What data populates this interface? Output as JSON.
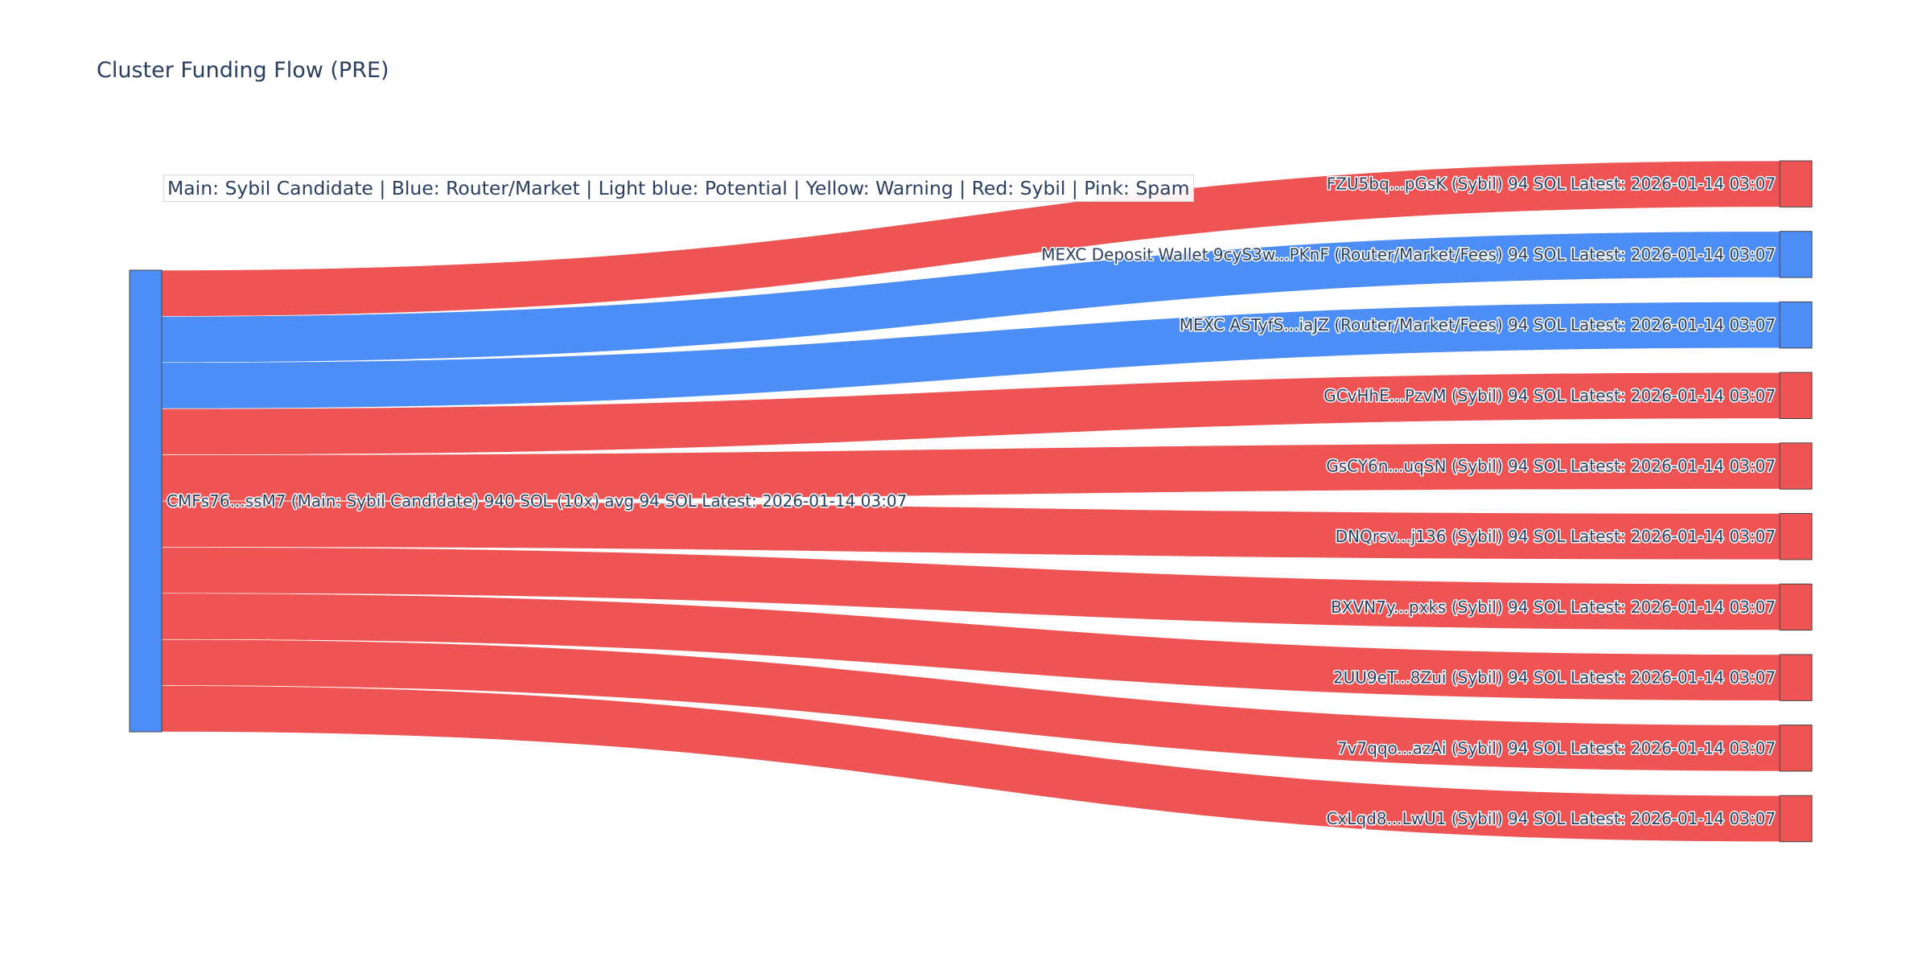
{
  "chart_data": {
    "type": "sankey",
    "title": "Cluster Funding Flow (PRE)",
    "annotation": "Main: Sybil Candidate  |  Blue: Router/Market | Light blue: Potential | Yellow: Warning | Red: Sybil | Pink: Spam",
    "colors": {
      "blue": "#4d8ef6",
      "red": "#ef5454",
      "node_border": "#444444"
    },
    "source": {
      "label": "CMFs76...ssM7 (Main: Sybil Candidate) 940 SOL (10x) avg 94 SOL Latest: 2026-01-14 03:07",
      "value": 940,
      "color": "blue"
    },
    "targets": [
      {
        "label": "FZU5bq...pGsK (Sybil) 94 SOL Latest: 2026-01-14 03:07",
        "value": 94,
        "node_color": "red",
        "link_color": "red"
      },
      {
        "label": "MEXC Deposit Wallet 9cyS3w...PKnF (Router/Market/Fees) 94 SOL Latest: 2026-01-14 03:07",
        "value": 94,
        "node_color": "blue",
        "link_color": "blue"
      },
      {
        "label": "MEXC ASTyfS...iaJZ (Router/Market/Fees) 94 SOL Latest: 2026-01-14 03:07",
        "value": 94,
        "node_color": "blue",
        "link_color": "blue"
      },
      {
        "label": "GCvHhE...PzvM (Sybil) 94 SOL Latest: 2026-01-14 03:07",
        "value": 94,
        "node_color": "red",
        "link_color": "red"
      },
      {
        "label": "GsCY6n...uqSN (Sybil) 94 SOL Latest: 2026-01-14 03:07",
        "value": 94,
        "node_color": "red",
        "link_color": "red"
      },
      {
        "label": "DNQrsv...j136 (Sybil) 94 SOL Latest: 2026-01-14 03:07",
        "value": 94,
        "node_color": "red",
        "link_color": "red"
      },
      {
        "label": "BXVN7y...pxks (Sybil) 94 SOL Latest: 2026-01-14 03:07",
        "value": 94,
        "node_color": "red",
        "link_color": "red"
      },
      {
        "label": "2UU9eT...8Zui (Sybil) 94 SOL Latest: 2026-01-14 03:07",
        "value": 94,
        "node_color": "red",
        "link_color": "red"
      },
      {
        "label": "7v7qqo...azAi (Sybil) 94 SOL Latest: 2026-01-14 03:07",
        "value": 94,
        "node_color": "red",
        "link_color": "red"
      },
      {
        "label": "CxLqd8...LwU1 (Sybil) 94 SOL Latest: 2026-01-14 03:07",
        "value": 94,
        "node_color": "red",
        "link_color": "red"
      }
    ]
  }
}
